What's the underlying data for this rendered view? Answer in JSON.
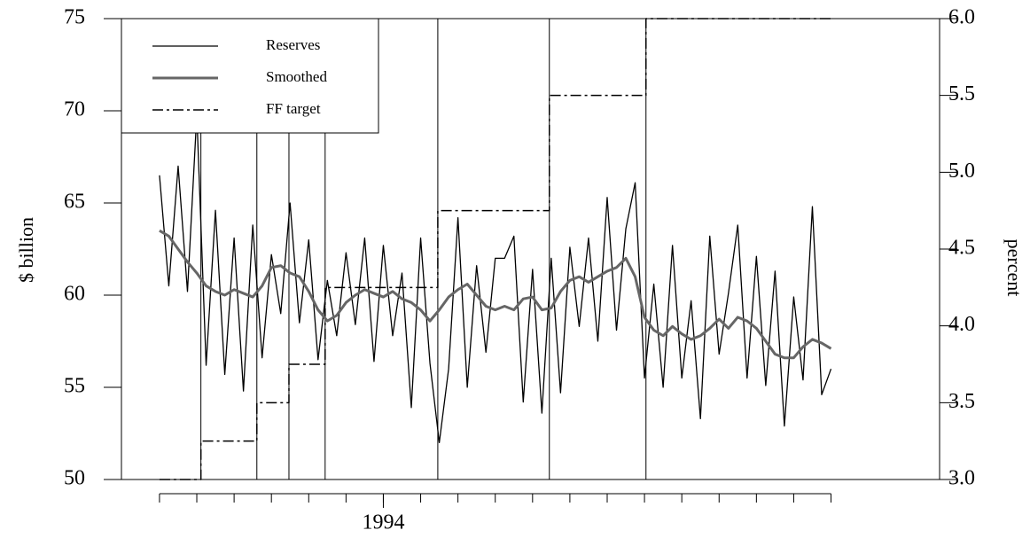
{
  "chart_data": {
    "type": "line",
    "legend": "upper left",
    "ylabel": "$ billion",
    "y2label": "percent",
    "xlim": [
      -1.02,
      20.91
    ],
    "x_tick_marks": [
      0,
      1,
      2,
      3,
      4,
      5,
      6,
      7,
      8,
      9,
      10,
      11,
      12,
      13,
      14,
      15,
      16,
      17,
      18
    ],
    "x_labels": [
      {
        "value": 6,
        "label": "1994"
      }
    ],
    "ylim": [
      50,
      75
    ],
    "yticks": [
      50,
      55,
      60,
      65,
      70,
      75
    ],
    "y2lim": [
      3.0,
      6.0
    ],
    "y2ticks": [
      {
        "value": 3,
        "label": "3.0"
      },
      3.5,
      {
        "value": 4,
        "label": "4.0"
      },
      4.5,
      {
        "value": 5,
        "label": "5.0"
      },
      5.5,
      {
        "value": 6,
        "label": "6.0"
      }
    ],
    "event_lines": [
      1.11,
      2.61,
      3.47,
      4.44,
      7.46,
      10.45,
      13.04
    ],
    "x": [
      0,
      0.25,
      0.5,
      0.75,
      1,
      1.25,
      1.5,
      1.75,
      2,
      2.25,
      2.5,
      2.75,
      3,
      3.25,
      3.5,
      3.75,
      4,
      4.25,
      4.5,
      4.75,
      5,
      5.25,
      5.5,
      5.75,
      6,
      6.25,
      6.5,
      6.75,
      7,
      7.25,
      7.5,
      7.75,
      8,
      8.25,
      8.5,
      8.75,
      9,
      9.25,
      9.5,
      9.75,
      10,
      10.25,
      10.5,
      10.75,
      11,
      11.25,
      11.5,
      11.75,
      12,
      12.25,
      12.5,
      12.75,
      13,
      13.25,
      13.5,
      13.75,
      14,
      14.25,
      14.5,
      14.75,
      15,
      15.25,
      15.5,
      15.75,
      16,
      16.25,
      16.5,
      16.75,
      17,
      17.25,
      17.5,
      17.75,
      18
    ],
    "series": [
      {
        "name": "Reserves",
        "color": "#000000",
        "linestyle": "solid",
        "width": 1.3,
        "values": [
          66.5,
          60.5,
          67.0,
          60.2,
          69.8,
          56.2,
          64.6,
          55.7,
          63.1,
          54.8,
          63.8,
          56.6,
          62.2,
          59.0,
          65.0,
          58.5,
          63.0,
          56.5,
          60.8,
          57.8,
          62.3,
          58.4,
          63.1,
          56.4,
          62.7,
          57.8,
          61.2,
          53.9,
          63.1,
          56.3,
          52.0,
          56.0,
          64.2,
          55.0,
          61.6,
          56.9,
          62.0,
          62.0,
          63.2,
          54.2,
          61.4,
          53.6,
          62.0,
          54.7,
          62.6,
          58.3,
          63.1,
          57.5,
          65.3,
          58.1,
          63.6,
          66.1,
          55.5,
          60.6,
          55.0,
          62.7,
          55.5,
          59.7,
          53.3,
          63.2,
          56.8,
          60.1,
          63.8,
          55.5,
          62.1,
          55.1,
          61.3,
          52.9,
          59.9,
          55.4,
          64.8,
          54.6,
          56.0
        ]
      },
      {
        "name": "Smoothed",
        "color": "#666666",
        "linestyle": "solid",
        "width": 3,
        "values": [
          63.5,
          63.2,
          62.5,
          61.8,
          61.2,
          60.5,
          60.2,
          60.0,
          60.3,
          60.1,
          59.9,
          60.5,
          61.5,
          61.6,
          61.2,
          61.0,
          60.2,
          59.2,
          58.6,
          58.9,
          59.6,
          60.0,
          60.3,
          60.1,
          59.9,
          60.2,
          59.8,
          59.6,
          59.2,
          58.6,
          59.2,
          59.9,
          60.3,
          60.6,
          60.0,
          59.4,
          59.2,
          59.4,
          59.2,
          59.8,
          59.9,
          59.2,
          59.3,
          60.2,
          60.8,
          61.0,
          60.7,
          61.0,
          61.3,
          61.5,
          62.0,
          61.0,
          58.8,
          58.1,
          57.8,
          58.3,
          57.9,
          57.6,
          57.8,
          58.2,
          58.7,
          58.2,
          58.8,
          58.6,
          58.2,
          57.5,
          56.8,
          56.6,
          56.6,
          57.2,
          57.6,
          57.4,
          57.1
        ]
      },
      {
        "name": "FF target",
        "color": "#000000",
        "linestyle": "dashdot",
        "width": 1.5,
        "axis": "y2",
        "x": [
          0,
          1.11,
          1.11,
          2.61,
          2.61,
          3.47,
          3.47,
          4.44,
          4.44,
          7.46,
          7.46,
          10.45,
          10.45,
          13.04,
          13.04,
          18
        ],
        "values": [
          3,
          3,
          3.25,
          3.25,
          3.5,
          3.5,
          3.75,
          3.75,
          4.25,
          4.25,
          4.75,
          4.75,
          5.5,
          5.5,
          6,
          6
        ]
      }
    ]
  }
}
